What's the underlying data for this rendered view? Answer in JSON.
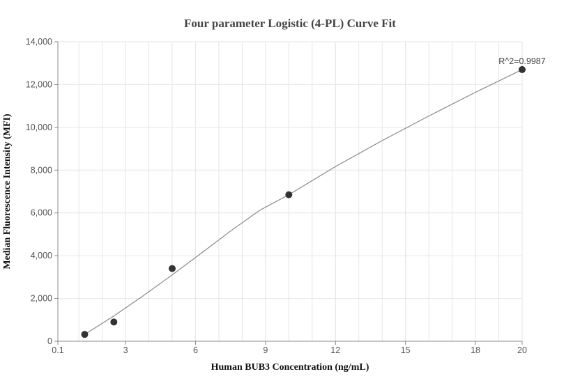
{
  "chart_data": {
    "type": "scatter",
    "title": "Four parameter Logistic (4-PL) Curve Fit",
    "xlabel": "Human BUB3 Concentration (ng/mL)",
    "ylabel": "Median Fluorescence Intensity (MFI)",
    "xlim": [
      0.1,
      20
    ],
    "ylim": [
      0,
      14000
    ],
    "x_ticks": [
      0.1,
      3,
      6,
      9,
      12,
      15,
      18,
      20
    ],
    "x_tick_labels": [
      "0.1",
      "3",
      "6",
      "9",
      "12",
      "15",
      "18",
      "20"
    ],
    "y_ticks": [
      0,
      2000,
      4000,
      6000,
      8000,
      10000,
      12000,
      14000
    ],
    "y_tick_labels": [
      "0",
      "2,000",
      "4,000",
      "6,000",
      "8,000",
      "10,000",
      "12,000",
      "14,000"
    ],
    "grid": true,
    "points": [
      {
        "x": 1.25,
        "y": 320
      },
      {
        "x": 2.5,
        "y": 900
      },
      {
        "x": 5,
        "y": 3400
      },
      {
        "x": 10,
        "y": 6850
      },
      {
        "x": 20,
        "y": 12700
      }
    ],
    "fit_curve": [
      {
        "x": 1.25,
        "y": 320
      },
      {
        "x": 2.5,
        "y": 1180
      },
      {
        "x": 3.75,
        "y": 2120
      },
      {
        "x": 5,
        "y": 3100
      },
      {
        "x": 6.25,
        "y": 4120
      },
      {
        "x": 7.5,
        "y": 5150
      },
      {
        "x": 8.75,
        "y": 6120
      },
      {
        "x": 10,
        "y": 6850
      },
      {
        "x": 12,
        "y": 8170
      },
      {
        "x": 14,
        "y": 9380
      },
      {
        "x": 16,
        "y": 10530
      },
      {
        "x": 18,
        "y": 11640
      },
      {
        "x": 20,
        "y": 12700
      }
    ],
    "annotation": {
      "text": "R^2=0.9987",
      "x": 20,
      "y": 12700
    },
    "colors": {
      "point": "#333333",
      "curve": "#888888",
      "grid": "#e6e6ec",
      "axis": "#888888"
    }
  }
}
